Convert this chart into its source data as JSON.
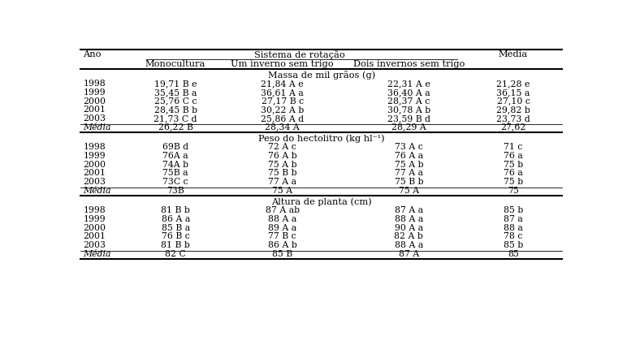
{
  "header1": "Sistema de rotação",
  "col_headers": [
    "Ano",
    "Monocultura",
    "Um inverno sem trigo",
    "Dois invernos sem trigo",
    "Média"
  ],
  "section1_title": "Massa de mil grãos (g)",
  "section1_rows": [
    [
      "1998",
      "19,71 B e",
      "21,84 A e",
      "22,31 A e",
      "21,28 e"
    ],
    [
      "1999",
      "35,45 B a",
      "36,61 A a",
      "36,40 A a",
      "36,15 a"
    ],
    [
      "2000",
      "25,76 C c",
      "27,17 B c",
      "28,37 A c",
      "27,10 c"
    ],
    [
      "2001",
      "28,45 B b",
      "30,22 A b",
      "30,78 A b",
      "29,82 b"
    ],
    [
      "2003",
      "21,73 C d",
      "25,86 A d",
      "23,59 B d",
      "23,73 d"
    ]
  ],
  "section1_media": [
    "Média",
    "26,22 B",
    "28,34 A",
    "28,29 A",
    "27,62"
  ],
  "section2_title": "Peso do hectolitro (kg hl⁻¹)",
  "section2_rows": [
    [
      "1998",
      "69B d",
      "72 A c",
      "73 A c",
      "71 c"
    ],
    [
      "1999",
      "76A a",
      "76 A b",
      "76 A a",
      "76 a"
    ],
    [
      "2000",
      "74A b",
      "75 A b",
      "75 A b",
      "75 b"
    ],
    [
      "2001",
      "75B a",
      "75 B b",
      "77 A a",
      "76 a"
    ],
    [
      "2003",
      "73C c",
      "77 A a",
      "75 B b",
      "75 b"
    ]
  ],
  "section2_media": [
    "Média",
    "73B",
    "75 A",
    "75 A",
    "75"
  ],
  "section3_title": "Altura de planta (cm)",
  "section3_rows": [
    [
      "1998",
      "81 B b",
      "87 A ab",
      "87 A a",
      "85 b"
    ],
    [
      "1999",
      "86 A a",
      "88 A a",
      "88 A a",
      "87 a"
    ],
    [
      "2000",
      "85 B a",
      "89 A a",
      "90 A a",
      "88 a"
    ],
    [
      "2001",
      "76 B c",
      "77 B c",
      "82 A b",
      "78 c"
    ],
    [
      "2003",
      "81 B b",
      "86 A b",
      "88 A a",
      "85 b"
    ]
  ],
  "section3_media": [
    "Média",
    "82 C",
    "85 B",
    "87 A",
    "85"
  ],
  "bg_color": "#ffffff",
  "text_color": "#000000",
  "font_size": 7.8,
  "header_font_size": 8.2
}
